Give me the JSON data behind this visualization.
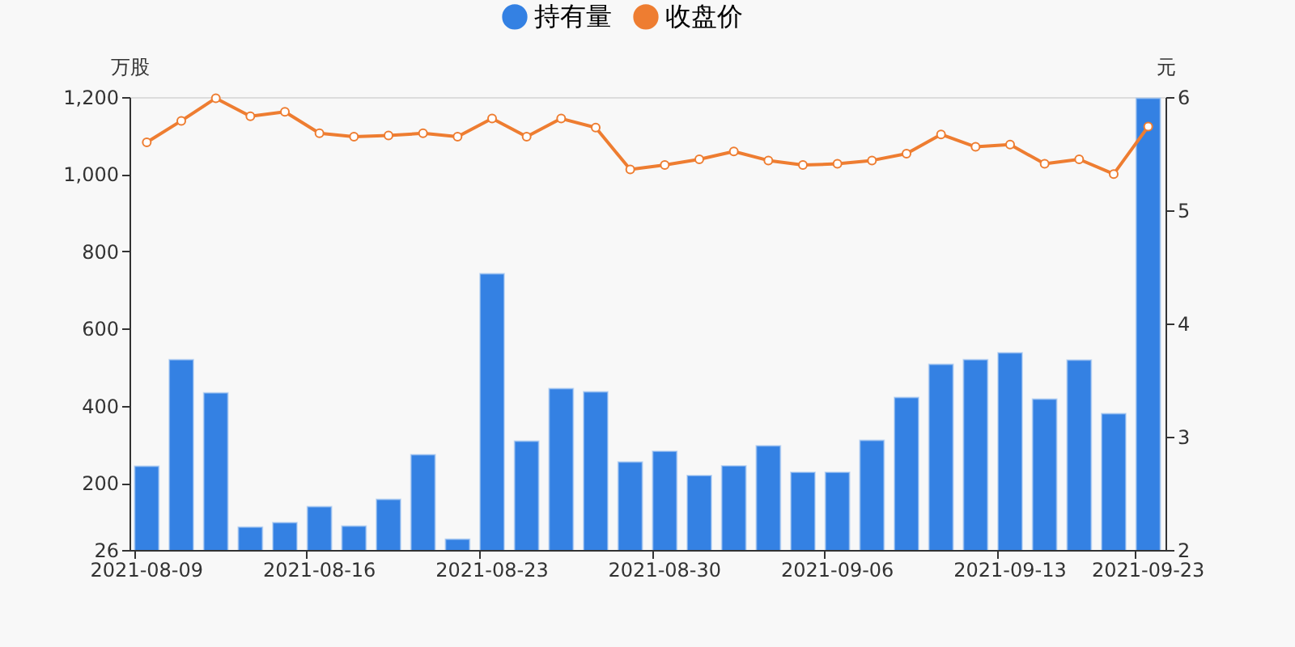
{
  "chart_data": {
    "type": "bar",
    "categories": [
      "2021-08-09",
      null,
      null,
      null,
      null,
      "2021-08-16",
      null,
      null,
      null,
      null,
      "2021-08-23",
      null,
      null,
      null,
      null,
      "2021-08-30",
      null,
      null,
      null,
      null,
      "2021-09-06",
      null,
      null,
      null,
      null,
      "2021-09-13",
      null,
      null,
      null,
      "2021-09-23"
    ],
    "series": [
      {
        "name": "持有量",
        "color": "#3481e3",
        "values": [
          243,
          519,
          433,
          85,
          97,
          138,
          88,
          157,
          273,
          54,
          742,
          308,
          444,
          436,
          254,
          282,
          219,
          244,
          296,
          227,
          227,
          310,
          421,
          507,
          519,
          537,
          417,
          518,
          379,
          1197
        ]
      },
      {
        "name": "收盘价",
        "type": "line",
        "axis": "y2",
        "color": "#ee7d31",
        "marker": "circle",
        "line_style": "solid",
        "values": [
          5.6,
          5.79,
          5.99,
          5.83,
          5.87,
          5.68,
          5.65,
          5.66,
          5.68,
          5.65,
          5.81,
          5.65,
          5.81,
          5.73,
          5.36,
          5.4,
          5.45,
          5.52,
          5.44,
          5.4,
          5.41,
          5.44,
          5.5,
          5.67,
          5.56,
          5.58,
          5.41,
          5.45,
          5.32,
          5.74
        ]
      }
    ],
    "ylabel": "万股",
    "y2label": "元",
    "ylim": [
      26,
      1200
    ],
    "yticks": [
      26,
      200,
      400,
      600,
      800,
      {
        "value": 1000,
        "label": "1,000"
      },
      {
        "value": 1200,
        "label": "1,200"
      }
    ],
    "y2lim": [
      2,
      6
    ],
    "y2ticks": [
      2,
      3,
      4,
      5,
      6
    ],
    "legend": "top",
    "grid": false
  }
}
